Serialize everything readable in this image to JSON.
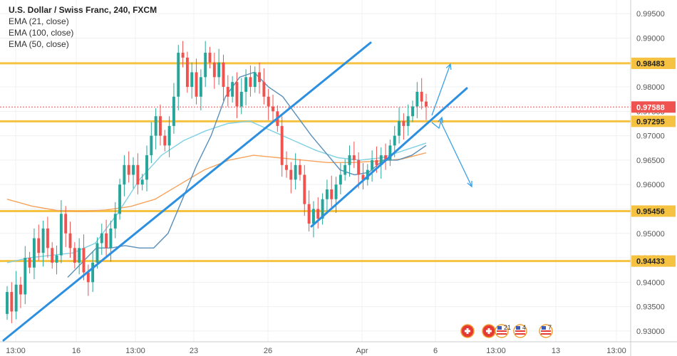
{
  "legend": {
    "title": "U.S. Dollar / Swiss Franc, 240, FXCM",
    "ema21": "EMA (21, close)",
    "ema100": "EMA (100, close)",
    "ema50": "EMA (50, close)"
  },
  "colors": {
    "bull": "#26a69a",
    "bear": "#ef5350",
    "level": "#f5c242",
    "trendline": "#2d8fe0",
    "ema21": "#5b8fb9",
    "ema50": "#f7a35c",
    "ema100": "#7fd1e3",
    "current": "#ef5350"
  },
  "events": [
    {
      "icon": "swiss-flag-icon",
      "label": ""
    },
    {
      "icon": "swiss-flag-icon",
      "label": ""
    },
    {
      "icon": "us-flag-icon",
      "label": "21"
    },
    {
      "icon": "us-flag-icon",
      "label": "4"
    },
    {
      "icon": "us-flag-icon",
      "label": "7"
    }
  ],
  "chart_data": {
    "type": "candlestick",
    "symbol": "USD/CHF",
    "ylim": [
      0.9278,
      0.9978
    ],
    "y_ticks": [
      "0.99500",
      "0.99000",
      "0.98000",
      "0.97500",
      "0.97000",
      "0.96500",
      "0.96000",
      "0.95500",
      "0.95000",
      "0.94500",
      "0.94000",
      "0.93500",
      "0.93000"
    ],
    "x_ticks": [
      "13:00",
      "16",
      "13:00",
      "23",
      "26",
      "Apr",
      "6",
      "13:00",
      "13",
      "13:00"
    ],
    "levels": [
      0.98483,
      0.97295,
      0.95456,
      0.94433
    ],
    "level_labels": [
      "0.98483",
      "0.97295",
      "0.95456",
      "0.94433"
    ],
    "current_price": 0.97588,
    "current_label": "0.97588",
    "candles": [
      [
        0.9335,
        0.938
      ],
      [
        0.938,
        0.934
      ],
      [
        0.934,
        0.9395
      ],
      [
        0.9395,
        0.9375
      ],
      [
        0.9375,
        0.945
      ],
      [
        0.945,
        0.943
      ],
      [
        0.943,
        0.949
      ],
      [
        0.949,
        0.946
      ],
      [
        0.946,
        0.951
      ],
      [
        0.951,
        0.947
      ],
      [
        0.947,
        0.944
      ],
      [
        0.944,
        0.9455
      ],
      [
        0.9455,
        0.954
      ],
      [
        0.954,
        0.95
      ],
      [
        0.95,
        0.947
      ],
      [
        0.947,
        0.944
      ],
      [
        0.944,
        0.947
      ],
      [
        0.947,
        0.942
      ],
      [
        0.942,
        0.94
      ],
      [
        0.94,
        0.944
      ],
      [
        0.944,
        0.948
      ],
      [
        0.948,
        0.95
      ],
      [
        0.95,
        0.947
      ],
      [
        0.947,
        0.951
      ],
      [
        0.951,
        0.954
      ],
      [
        0.954,
        0.96
      ],
      [
        0.96,
        0.964
      ],
      [
        0.964,
        0.962
      ],
      [
        0.962,
        0.964
      ],
      [
        0.964,
        0.96
      ],
      [
        0.96,
        0.961
      ],
      [
        0.961,
        0.966
      ],
      [
        0.966,
        0.97
      ],
      [
        0.97,
        0.974
      ],
      [
        0.974,
        0.97
      ],
      [
        0.97,
        0.968
      ],
      [
        0.968,
        0.972
      ],
      [
        0.972,
        0.978
      ],
      [
        0.978,
        0.987
      ],
      [
        0.987,
        0.986
      ],
      [
        0.986,
        0.98
      ],
      [
        0.98,
        0.983
      ],
      [
        0.983,
        0.978
      ],
      [
        0.978,
        0.982
      ],
      [
        0.982,
        0.987
      ],
      [
        0.987,
        0.985
      ],
      [
        0.985,
        0.982
      ],
      [
        0.982,
        0.985
      ],
      [
        0.985,
        0.98
      ],
      [
        0.98,
        0.978
      ],
      [
        0.978,
        0.981
      ],
      [
        0.981,
        0.976
      ],
      [
        0.976,
        0.979
      ],
      [
        0.979,
        0.982
      ],
      [
        0.982,
        0.98
      ],
      [
        0.98,
        0.983
      ],
      [
        0.983,
        0.981
      ],
      [
        0.981,
        0.978
      ],
      [
        0.978,
        0.976
      ],
      [
        0.976,
        0.975
      ],
      [
        0.975,
        0.972
      ],
      [
        0.972,
        0.964
      ],
      [
        0.964,
        0.963
      ],
      [
        0.963,
        0.961
      ],
      [
        0.961,
        0.964
      ],
      [
        0.964,
        0.962
      ],
      [
        0.962,
        0.956
      ],
      [
        0.956,
        0.952
      ],
      [
        0.952,
        0.955
      ],
      [
        0.955,
        0.953
      ],
      [
        0.953,
        0.957
      ],
      [
        0.957,
        0.959
      ],
      [
        0.959,
        0.957
      ],
      [
        0.957,
        0.96
      ],
      [
        0.96,
        0.962
      ],
      [
        0.962,
        0.964
      ],
      [
        0.964,
        0.966
      ],
      [
        0.966,
        0.965
      ],
      [
        0.965,
        0.962
      ],
      [
        0.962,
        0.961
      ],
      [
        0.961,
        0.963
      ],
      [
        0.963,
        0.965
      ],
      [
        0.965,
        0.964
      ],
      [
        0.964,
        0.966
      ],
      [
        0.966,
        0.965
      ],
      [
        0.965,
        0.968
      ],
      [
        0.968,
        0.97
      ],
      [
        0.97,
        0.973
      ],
      [
        0.973,
        0.972
      ],
      [
        0.972,
        0.974
      ],
      [
        0.974,
        0.976
      ],
      [
        0.976,
        0.979
      ],
      [
        0.979,
        0.977
      ],
      [
        0.977,
        0.976
      ]
    ],
    "ema21": [
      0.941,
      0.944,
      0.947,
      0.947,
      0.9475,
      0.947,
      0.947,
      0.95,
      0.957,
      0.964,
      0.97,
      0.978,
      0.982,
      0.983,
      0.98,
      0.978,
      0.974,
      0.97,
      0.9665,
      0.963,
      0.962,
      0.9625,
      0.965,
      0.965,
      0.966,
      0.968
    ],
    "ema50": [
      0.957,
      0.9556,
      0.9547,
      0.9545,
      0.9548,
      0.9555,
      0.957,
      0.96,
      0.963,
      0.965,
      0.966,
      0.9655,
      0.965,
      0.9645,
      0.9645,
      0.9648,
      0.9652,
      0.9665
    ],
    "ema100": [
      0.944,
      0.945,
      0.9455,
      0.946,
      0.948,
      0.954,
      0.961,
      0.966,
      0.969,
      0.971,
      0.9725,
      0.973,
      0.971,
      0.969,
      0.967,
      0.9655,
      0.965,
      0.9655,
      0.967,
      0.9685
    ]
  }
}
